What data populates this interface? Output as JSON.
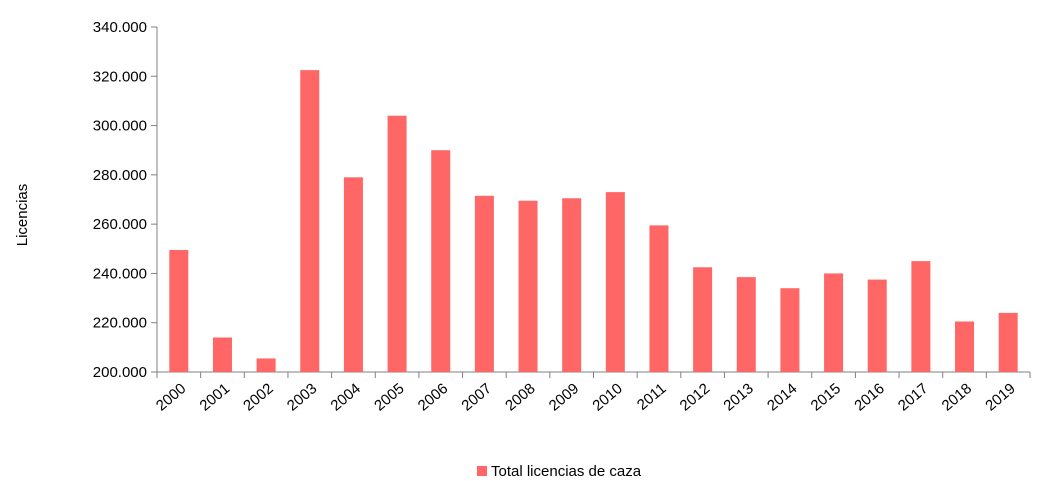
{
  "chart_data": {
    "type": "bar",
    "title": "",
    "xlabel": "",
    "ylabel": "Licencias",
    "categories": [
      "2000",
      "2001",
      "2002",
      "2003",
      "2004",
      "2005",
      "2006",
      "2007",
      "2008",
      "2009",
      "2010",
      "2011",
      "2012",
      "2013",
      "2014",
      "2015",
      "2016",
      "2017",
      "2018",
      "2019"
    ],
    "series": [
      {
        "name": "Total licencias de caza",
        "values": [
          249500,
          214000,
          205500,
          322500,
          279000,
          304000,
          290000,
          271500,
          269500,
          270500,
          273000,
          259500,
          242500,
          238500,
          234000,
          240000,
          237500,
          245000,
          220500,
          224000
        ],
        "color": "#ff6666"
      }
    ],
    "ylim": [
      200000,
      340000
    ],
    "yticks": [
      200000,
      220000,
      240000,
      260000,
      280000,
      300000,
      320000,
      340000
    ],
    "ytick_labels": [
      "200.000",
      "220.000",
      "240.000",
      "260.000",
      "280.000",
      "300.000",
      "320.000",
      "340.000"
    ],
    "grid": false,
    "legend_position": "bottom-center",
    "axis_color": "#808080"
  }
}
